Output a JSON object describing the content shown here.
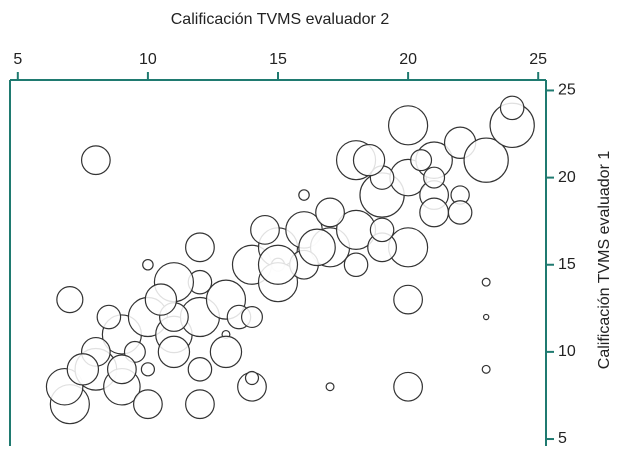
{
  "chart_data": {
    "type": "bubble",
    "x_label": "Calificación TVMS evaluador 2",
    "y_label": "Calificación TVMS evaluador 1",
    "xlim": [
      4.7,
      25.3
    ],
    "xticks": [
      5,
      10,
      15,
      20,
      25
    ],
    "ylim": [
      4.6,
      25.6
    ],
    "yticks": [
      5,
      10,
      15,
      20,
      25
    ],
    "axis_color": "#1f7a70",
    "marker_color": "#ffffff",
    "marker_edge": "#333333",
    "x": [
      8,
      7,
      7,
      6.8,
      8,
      9,
      9,
      10,
      11,
      12,
      13,
      12,
      14,
      15,
      16,
      17,
      18,
      18,
      19,
      20,
      21,
      21,
      22,
      22,
      23,
      24,
      24,
      20,
      20,
      19,
      18,
      21,
      20,
      20,
      14,
      14,
      17,
      23,
      23,
      23,
      16,
      10,
      15,
      13,
      12,
      10,
      11,
      13,
      12,
      9.5,
      10,
      8.5,
      11,
      12,
      13.5,
      15,
      16,
      17,
      19,
      18.5,
      20.5,
      19,
      16.5,
      15,
      14.5,
      11,
      10.5,
      8,
      7.5,
      9,
      14,
      21,
      22
    ],
    "values": [
      21,
      13,
      7,
      8,
      9,
      8,
      11,
      12,
      11,
      12,
      13,
      16,
      15,
      16,
      17,
      16,
      17,
      21,
      19,
      20,
      21,
      19,
      19,
      22,
      21,
      23,
      24,
      23,
      16,
      16,
      15,
      18,
      13,
      8,
      8,
      8.5,
      8,
      14,
      12,
      9,
      19,
      15,
      15,
      11,
      7,
      7,
      10,
      10,
      9,
      10,
      9,
      12,
      12,
      14,
      12,
      14,
      15,
      18,
      20,
      21,
      21,
      17,
      16,
      15,
      17,
      14,
      13,
      10,
      9,
      9,
      12,
      20,
      18
    ],
    "sizes": [
      11,
      10,
      15,
      14,
      16,
      14,
      15,
      15,
      14,
      15,
      15,
      11,
      15,
      15,
      14,
      15,
      15,
      15,
      17,
      14,
      14,
      11,
      7,
      12,
      17,
      17,
      9,
      15,
      15,
      11,
      9,
      11,
      11,
      11,
      11,
      5,
      3,
      3,
      2,
      3,
      4,
      4,
      5,
      3,
      11,
      11,
      12,
      12,
      9,
      8,
      5,
      9,
      11,
      9,
      9,
      15,
      11,
      11,
      9,
      12,
      8,
      9,
      14,
      15,
      11,
      15,
      12,
      11,
      12,
      11,
      8,
      8,
      9
    ]
  }
}
